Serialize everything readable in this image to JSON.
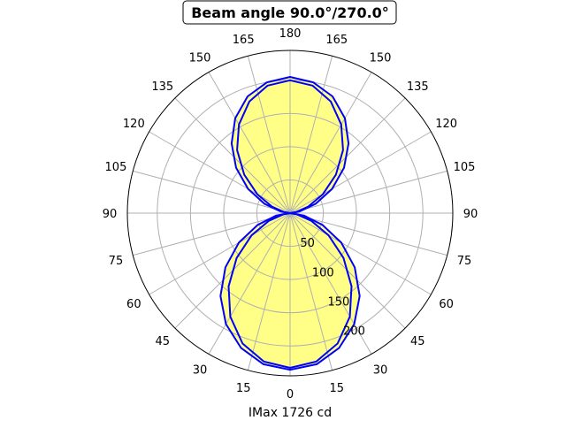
{
  "chart_data": {
    "type": "polar-line",
    "title": "Beam angle 90.0°/270.0°",
    "xlabel": "IMax 1726 cd",
    "angle_ticks": [
      "0",
      "15",
      "30",
      "45",
      "60",
      "75",
      "90",
      "105",
      "120",
      "135",
      "150",
      "165",
      "180"
    ],
    "angle_tick_values": [
      0,
      15,
      30,
      45,
      60,
      75,
      90,
      105,
      120,
      135,
      150,
      165,
      180
    ],
    "radial_ticks": [
      "50",
      "100",
      "150",
      "200"
    ],
    "radial_tick_values": [
      50,
      100,
      150,
      200
    ],
    "rlim": [
      0,
      245
    ],
    "grid": true,
    "angles": [
      0,
      10,
      20,
      30,
      40,
      50,
      60,
      70,
      80,
      90,
      100,
      110,
      120,
      130,
      140,
      150,
      160,
      170,
      180
    ],
    "series": [
      {
        "values": [
          236,
          231,
          216,
          193,
          163,
          127,
          89,
          52,
          21,
          0,
          15,
          41,
          73,
          106,
          137,
          165,
          187,
          200,
          205
        ]
      },
      {
        "values": [
          233,
          227,
          209,
          180,
          144,
          105,
          67,
          34,
          10,
          0,
          9,
          29,
          57,
          90,
          124,
          154,
          179,
          195,
          200
        ]
      }
    ],
    "colors": {
      "line": "#0000ff",
      "fill": "#ffff88",
      "grid": "#b0b0b0"
    }
  }
}
